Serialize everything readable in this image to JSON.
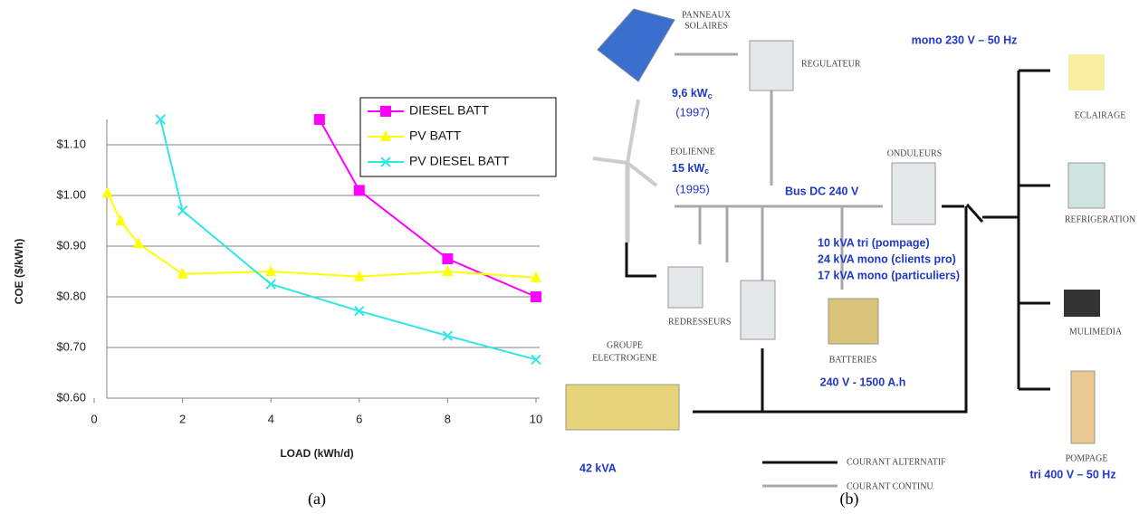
{
  "chart_data": {
    "type": "line",
    "xlabel": "LOAD (kWh/d)",
    "ylabel": "COE ($/kWh)",
    "xlim": [
      0,
      10
    ],
    "ylim": [
      0.6,
      1.15
    ],
    "xticks": [
      0,
      2,
      4,
      6,
      8,
      10
    ],
    "yticks": [
      {
        "value": 0.6,
        "label": "$0.60"
      },
      {
        "value": 0.7,
        "label": "$0.70"
      },
      {
        "value": 0.8,
        "label": "$0.80"
      },
      {
        "value": 0.9,
        "label": "$0.90"
      },
      {
        "value": 1.0,
        "label": "$1.00"
      },
      {
        "value": 1.1,
        "label": "$1.10"
      }
    ],
    "grid": true,
    "legend": "upper right",
    "series": [
      {
        "name": "DIESEL BATT",
        "color": "#ff00ff",
        "marker": "square",
        "x": [
          5.1,
          6,
          8,
          10
        ],
        "values": [
          1.15,
          1.01,
          0.875,
          0.8
        ]
      },
      {
        "name": "PV BATT",
        "color": "#ffff00",
        "marker": "triangle",
        "x": [
          0.3,
          0.6,
          1,
          2,
          4,
          6,
          8,
          10
        ],
        "values": [
          1.005,
          0.95,
          0.905,
          0.845,
          0.85,
          0.84,
          0.85,
          0.838
        ]
      },
      {
        "name": "PV DIESEL BATT",
        "color": "#33e6e6",
        "marker": "x",
        "x": [
          1.5,
          2,
          4,
          6,
          8,
          10
        ],
        "values": [
          1.15,
          0.97,
          0.825,
          0.772,
          0.723,
          0.676
        ]
      }
    ]
  },
  "diagram": {
    "panels": {
      "label_1": "PANNEAUX",
      "label_2": "SOLAIRES",
      "power": "9,6 kW",
      "power_sub": "c",
      "year": "(1997)"
    },
    "regulator": "REGULATEUR",
    "wind": {
      "label": "EOLIENNE",
      "power": "15 kW",
      "power_sub": "c",
      "year": "(1995)"
    },
    "inverters": "ONDULEURS",
    "bus": "Bus DC 240 V",
    "inverter_specs": [
      "10 kVA tri (pompage)",
      "24 kVA mono (clients pro)",
      "17 kVA mono (particuliers)"
    ],
    "rectifiers": "REDRESSEURS",
    "generator": {
      "label_1": "GROUPE",
      "label_2": "ELECTROGENE",
      "power": "42 kVA"
    },
    "batteries": {
      "label": "BATTERIES",
      "spec": "240 V - 1500 A.h"
    },
    "legend": {
      "ac": "COURANT ALTERNATIF",
      "dc": "COURANT CONTINU"
    },
    "outputs": {
      "mono": "mono 230 V – 50 Hz",
      "lighting": "ECLAIRAGE",
      "fridge": "REFRIGERATION",
      "media": "MULIMEDIA",
      "pump": "POMPAGE",
      "tri": "tri 400 V – 50 Hz"
    }
  },
  "captions": [
    "(a)",
    "(b)"
  ]
}
